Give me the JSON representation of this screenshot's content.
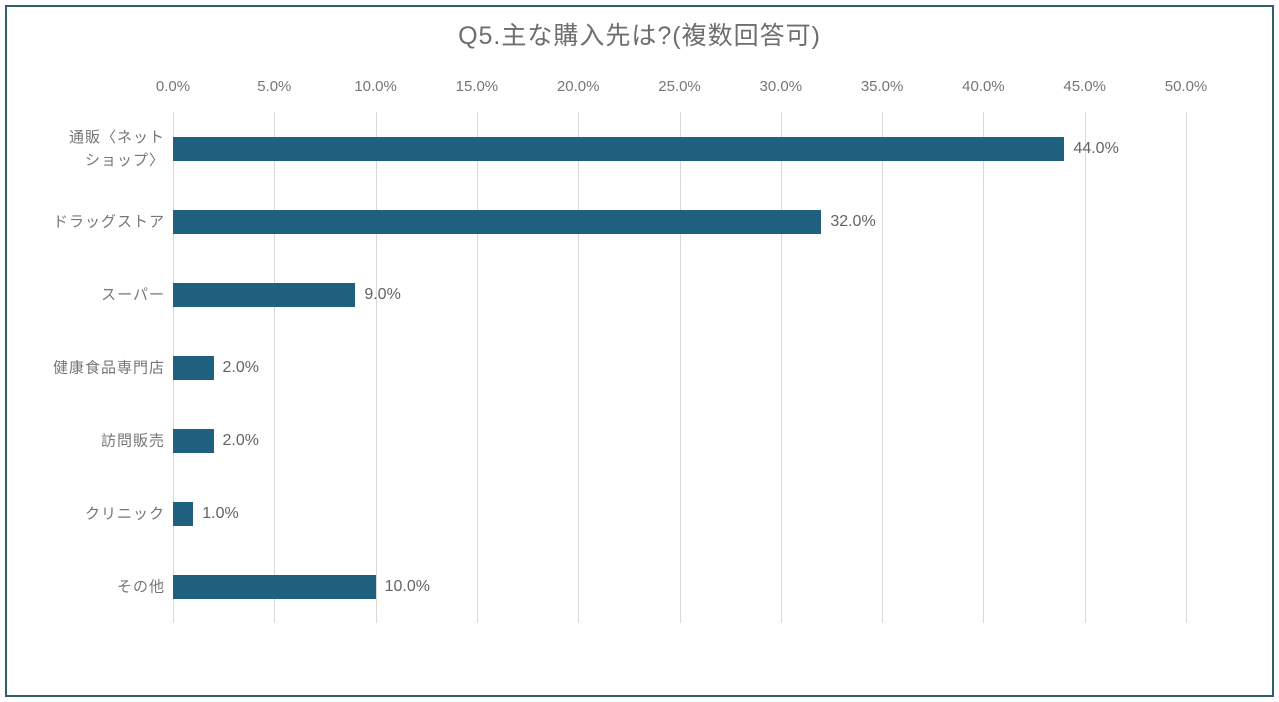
{
  "frame": {
    "border_color": "#2E5F6E"
  },
  "chart_data": {
    "type": "bar",
    "orientation": "horizontal",
    "title": "Q5.主な購入先は?(複数回答可)",
    "categories": [
      "通販〈ネットショップ〉",
      "ドラッグストア",
      "スーパー",
      "健康食品専門店",
      "訪問販売",
      "クリニック",
      "その他"
    ],
    "category_labels_display": [
      "通販〈ネット\nショップ〉",
      "ドラッグストア",
      "スーパー",
      "健康食品専門店",
      "訪問販売",
      "クリニック",
      "その他"
    ],
    "values": [
      44.0,
      32.0,
      9.0,
      2.0,
      2.0,
      1.0,
      10.0
    ],
    "data_labels": [
      "44.0%",
      "32.0%",
      "9.0%",
      "2.0%",
      "2.0%",
      "1.0%",
      "10.0%"
    ],
    "x_ticks": [
      "0.0%",
      "5.0%",
      "10.0%",
      "15.0%",
      "20.0%",
      "25.0%",
      "30.0%",
      "35.0%",
      "40.0%",
      "45.0%",
      "50.0%"
    ],
    "xlim": [
      0,
      50
    ],
    "xlabel": "",
    "ylabel": "",
    "legend": "none",
    "grid": "vertical",
    "bar_color": "#1F607E",
    "gridline_color": "#D9D9D9",
    "title_color": "#6E6E6E",
    "axis_label_color": "#767676",
    "data_label_color": "#636363"
  }
}
